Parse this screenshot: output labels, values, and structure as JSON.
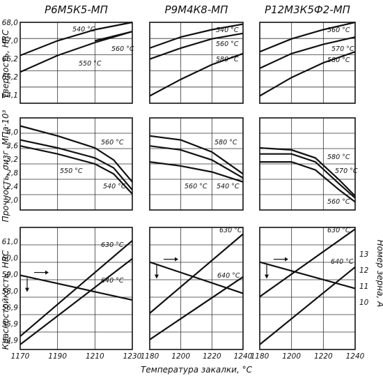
{
  "x_axis_label": "Температура закалки, °С",
  "y_axis_labels": {
    "row1": "Твердость, HRC",
    "row2": "Прочность, σизг ,МПа·10³",
    "row3": "Красностойкость, HRC",
    "grain": "Номер зерна, А"
  },
  "chart_data": [
    {
      "type": "line",
      "title": "Р6М5К5-МП",
      "row": 1,
      "col": 1,
      "x": [
        1170,
        1230
      ],
      "xlim": [
        1170,
        1230
      ],
      "ylim": [
        63.6,
        68.0
      ],
      "yticks": [
        "68,0",
        "67,0",
        "66,2",
        "65,2",
        "64,1"
      ],
      "series": [
        {
          "name": "540 °C",
          "x": [
            1170,
            1190,
            1210,
            1230
          ],
          "values": [
            66.2,
            67.0,
            67.6,
            68.0
          ]
        },
        {
          "name": "550 °C",
          "x": [
            1170,
            1190,
            1210,
            1230
          ],
          "values": [
            65.3,
            66.2,
            66.9,
            67.5
          ]
        },
        {
          "name": "560 °C",
          "x": [
            1210,
            1230
          ],
          "values": [
            67.0,
            67.5
          ]
        }
      ]
    },
    {
      "type": "line",
      "title": "Р9М4К8-МП",
      "row": 1,
      "col": 2,
      "x": [
        1180,
        1240
      ],
      "xlim": [
        1180,
        1240
      ],
      "ylim": [
        63.6,
        68.0
      ],
      "yticks": [],
      "series": [
        {
          "name": "540 °C",
          "x": [
            1180,
            1200,
            1220,
            1240
          ],
          "values": [
            66.6,
            67.2,
            67.6,
            67.9
          ]
        },
        {
          "name": "560 °C",
          "x": [
            1180,
            1200,
            1220,
            1240
          ],
          "values": [
            66.0,
            66.6,
            67.1,
            67.4
          ]
        },
        {
          "name": "580 °C",
          "x": [
            1180,
            1200,
            1220,
            1240
          ],
          "values": [
            64.0,
            64.9,
            65.7,
            66.3
          ]
        }
      ]
    },
    {
      "type": "line",
      "title": "Р12М3К5Ф2-МП",
      "row": 1,
      "col": 3,
      "x": [
        1180,
        1240
      ],
      "xlim": [
        1180,
        1240
      ],
      "ylim": [
        63.6,
        68.0
      ],
      "yticks": [],
      "series": [
        {
          "name": "560 °C",
          "x": [
            1180,
            1200,
            1220,
            1240
          ],
          "values": [
            66.4,
            67.1,
            67.6,
            68.0
          ]
        },
        {
          "name": "570 °C",
          "x": [
            1180,
            1200,
            1220,
            1240
          ],
          "values": [
            65.5,
            66.3,
            66.8,
            67.2
          ]
        },
        {
          "name": "580 °C",
          "x": [
            1180,
            1200,
            1220,
            1240
          ],
          "values": [
            64.0,
            65.0,
            65.8,
            66.4
          ]
        }
      ]
    },
    {
      "type": "line",
      "row": 2,
      "col": 1,
      "x": [
        1170,
        1230
      ],
      "xlim": [
        1170,
        1230
      ],
      "ylim": [
        2.0,
        4.3
      ],
      "yticks": [
        "4,0",
        "3,6",
        "3,2",
        "2,8",
        "2,4",
        "2,0"
      ],
      "series": [
        {
          "name": "560 °C",
          "x": [
            1170,
            1190,
            1210,
            1220,
            1230
          ],
          "values": [
            4.1,
            3.85,
            3.55,
            3.25,
            2.7
          ]
        },
        {
          "name": "550 °C",
          "x": [
            1170,
            1190,
            1210,
            1220,
            1230
          ],
          "values": [
            3.75,
            3.55,
            3.3,
            3.05,
            2.5
          ]
        },
        {
          "name": "540 °C",
          "x": [
            1170,
            1190,
            1210,
            1220,
            1230
          ],
          "values": [
            3.6,
            3.4,
            3.15,
            2.9,
            2.4
          ]
        }
      ]
    },
    {
      "type": "line",
      "row": 2,
      "col": 2,
      "x": [
        1180,
        1240
      ],
      "xlim": [
        1180,
        1240
      ],
      "ylim": [
        2.0,
        4.3
      ],
      "yticks": [],
      "series": [
        {
          "name": "580 °C",
          "x": [
            1180,
            1200,
            1220,
            1240
          ],
          "values": [
            3.85,
            3.75,
            3.45,
            2.9
          ]
        },
        {
          "name": "560 °C",
          "x": [
            1180,
            1200,
            1220,
            1240
          ],
          "values": [
            3.6,
            3.5,
            3.25,
            2.8
          ]
        },
        {
          "name": "540 °C",
          "x": [
            1180,
            1200,
            1220,
            1240
          ],
          "values": [
            3.2,
            3.1,
            2.95,
            2.7
          ]
        }
      ]
    },
    {
      "type": "line",
      "row": 2,
      "col": 3,
      "x": [
        1180,
        1240
      ],
      "xlim": [
        1180,
        1240
      ],
      "ylim": [
        2.0,
        4.3
      ],
      "yticks": [],
      "series": [
        {
          "name": "580 °C",
          "x": [
            1180,
            1200,
            1215,
            1230,
            1240
          ],
          "values": [
            3.55,
            3.5,
            3.3,
            2.75,
            2.35
          ]
        },
        {
          "name": "570 °C",
          "x": [
            1180,
            1200,
            1215,
            1230,
            1240
          ],
          "values": [
            3.4,
            3.4,
            3.2,
            2.65,
            2.3
          ]
        },
        {
          "name": "560 °C",
          "x": [
            1180,
            1200,
            1215,
            1230,
            1240
          ],
          "values": [
            3.2,
            3.2,
            3.0,
            2.5,
            2.2
          ]
        }
      ]
    },
    {
      "type": "line",
      "row": 3,
      "col": 1,
      "x": [
        1170,
        1230
      ],
      "xlim": [
        1170,
        1230
      ],
      "ylim": [
        54.0,
        61.4
      ],
      "yticks": [
        "61,0",
        "60,0",
        "59,0",
        "58,0",
        "56,9",
        "55,9",
        "54,9"
      ],
      "series": [
        {
          "name": "630 °C",
          "x": [
            1170,
            1230
          ],
          "values": [
            54.8,
            60.6
          ]
        },
        {
          "name": "640 °C",
          "x": [
            1170,
            1230
          ],
          "values": [
            54.3,
            59.5
          ]
        },
        {
          "name": "grain",
          "x": [
            1170,
            1230
          ],
          "values": [
            58.5,
            57.0
          ]
        }
      ]
    },
    {
      "type": "line",
      "row": 3,
      "col": 2,
      "x": [
        1180,
        1240
      ],
      "xlim": [
        1180,
        1240
      ],
      "ylim": [
        54.0,
        61.4
      ],
      "yticks": [],
      "series": [
        {
          "name": "630 °C",
          "x": [
            1180,
            1240
          ],
          "values": [
            56.2,
            61.0
          ]
        },
        {
          "name": "640 °C",
          "x": [
            1180,
            1240
          ],
          "values": [
            54.6,
            58.4
          ]
        },
        {
          "name": "grain",
          "x": [
            1180,
            1240
          ],
          "values": [
            59.3,
            57.4
          ]
        }
      ]
    },
    {
      "type": "line",
      "row": 3,
      "col": 3,
      "x": [
        1180,
        1240
      ],
      "xlim": [
        1180,
        1240
      ],
      "ylim": [
        54.0,
        61.4
      ],
      "yticks": [
        "13",
        "12",
        "11",
        "10"
      ],
      "series": [
        {
          "name": "630 °C",
          "x": [
            1180,
            1240
          ],
          "values": [
            57.2,
            61.3
          ]
        },
        {
          "name": "640 °C",
          "x": [
            1180,
            1240
          ],
          "values": [
            54.3,
            59.0
          ]
        },
        {
          "name": "grain",
          "x": [
            1180,
            1240
          ],
          "values": [
            59.3,
            57.7
          ]
        }
      ]
    }
  ],
  "x_tick_labels": {
    "col1": [
      "1170",
      "1190",
      "1210",
      "1230"
    ],
    "col2": [
      "1180",
      "1200",
      "1220",
      "1240"
    ],
    "col3": [
      "1180",
      "1200",
      "1220",
      "1240"
    ]
  }
}
